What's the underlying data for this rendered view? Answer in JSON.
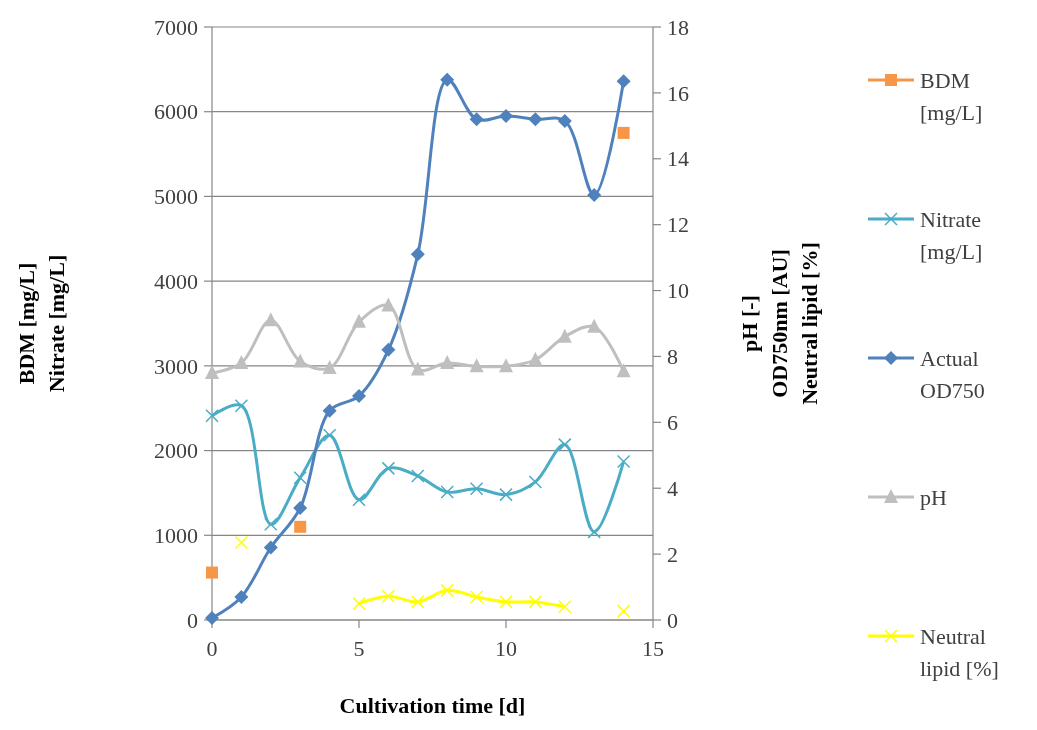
{
  "chart_data": {
    "type": "line",
    "xlabel": "Cultivation time [d]",
    "ylabel": "BDM [mg/L]\nNitrate [mg/L]",
    "y2label": "pH [-]\nOD750nm [AU]\nNeutral lipid [%]",
    "x": [
      0,
      1,
      2,
      3,
      4,
      5,
      6,
      7,
      8,
      9,
      10,
      11,
      12,
      13,
      14
    ],
    "xlim": [
      0,
      15
    ],
    "xticks": [
      0,
      5,
      10,
      15
    ],
    "ylim": [
      0,
      7000
    ],
    "yticks": [
      0,
      1000,
      2000,
      3000,
      4000,
      5000,
      6000,
      7000
    ],
    "y2lim": [
      0,
      18
    ],
    "y2ticks": [
      0,
      2,
      4,
      6,
      8,
      10,
      12,
      14,
      16,
      18
    ],
    "grid": "y",
    "legend": "right",
    "series": [
      {
        "name": "BDM [mg/L]",
        "type": "scatter",
        "color": "#f79646",
        "marker": "square",
        "values": [
          560,
          null,
          null,
          1100,
          null,
          null,
          null,
          null,
          null,
          null,
          null,
          null,
          null,
          null,
          5750
        ]
      },
      {
        "name": "Nitrate [mg/L]",
        "color": "#4bacc6",
        "marker": "cross",
        "values": [
          2410,
          2530,
          1130,
          1680,
          2180,
          1420,
          1790,
          1700,
          1510,
          1550,
          1480,
          1630,
          2070,
          1040,
          1870
        ]
      },
      {
        "name": "Actual OD750",
        "color": "#4f81bd",
        "marker": "diamond",
        "axis": "y2",
        "values": [
          0.06,
          0.7,
          2.2,
          3.4,
          6.35,
          6.8,
          8.2,
          11.1,
          16.4,
          15.2,
          15.3,
          15.2,
          15.15,
          12.9,
          16.35
        ]
      },
      {
        "name": "pH",
        "color": "#bfbfbf",
        "marker": "triangle",
        "axis": "y2",
        "values": [
          7.5,
          7.8,
          9.1,
          7.85,
          7.65,
          9.05,
          9.55,
          7.6,
          7.8,
          7.7,
          7.7,
          7.9,
          8.6,
          8.9,
          7.55
        ]
      },
      {
        "name": "Neutral lipid [%]",
        "color": "#ffff00",
        "marker": "cross",
        "axis": "y2",
        "values": [
          null,
          2.35,
          null,
          null,
          null,
          0.5,
          0.72,
          0.55,
          0.9,
          0.7,
          0.55,
          0.55,
          0.4,
          null,
          0.27
        ]
      }
    ]
  }
}
